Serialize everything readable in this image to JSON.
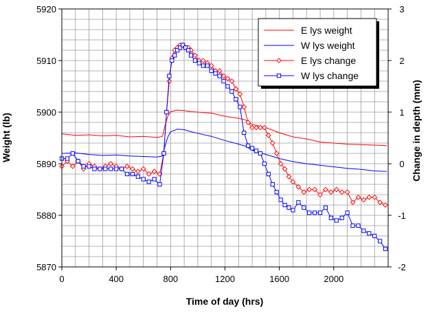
{
  "chart_data": {
    "type": "line",
    "title": "",
    "xlabel": "Time of day  (hrs)",
    "ylabel": "Weight  (lb)",
    "y2label": "Change in depth  (mm)",
    "xlim": [
      0,
      2400
    ],
    "ylim": [
      5870,
      5920
    ],
    "y2lim": [
      -2,
      3
    ],
    "x_ticks": [
      "0",
      "400",
      "800",
      "1200",
      "1600",
      "2000"
    ],
    "y_ticks": [
      "5870",
      "5880",
      "5890",
      "5900",
      "5910",
      "5920"
    ],
    "y2_ticks": [
      "-2",
      "-1",
      "0",
      "1",
      "2",
      "3"
    ],
    "grid": true,
    "legend_position": "top-right",
    "series": [
      {
        "name": "E lys weight",
        "axis": "left",
        "color": "#ff0000",
        "marker": "none",
        "x": [
          0,
          100,
          200,
          300,
          400,
          500,
          600,
          700,
          740,
          760,
          780,
          800,
          850,
          900,
          950,
          1000,
          1100,
          1200,
          1300,
          1350,
          1400,
          1500,
          1600,
          1700,
          1800,
          1900,
          2000,
          2100,
          2200,
          2300,
          2390
        ],
        "y": [
          5895.8,
          5895.5,
          5895.6,
          5895.4,
          5895.5,
          5895.2,
          5895.3,
          5895.1,
          5895.3,
          5897.5,
          5899.2,
          5900.1,
          5900.4,
          5900.3,
          5900.1,
          5900.0,
          5899.8,
          5899.2,
          5898.8,
          5898.5,
          5897.6,
          5897.0,
          5896.0,
          5895.2,
          5894.8,
          5894.2,
          5894.0,
          5893.8,
          5893.7,
          5893.6,
          5893.5
        ]
      },
      {
        "name": "W lys weight",
        "axis": "left",
        "color": "#0000ff",
        "marker": "none",
        "x": [
          0,
          100,
          200,
          300,
          400,
          500,
          600,
          700,
          740,
          760,
          780,
          800,
          850,
          900,
          950,
          1000,
          1100,
          1200,
          1300,
          1350,
          1400,
          1500,
          1600,
          1700,
          1800,
          1900,
          2000,
          2100,
          2200,
          2300,
          2390
        ],
        "y": [
          5892.0,
          5892.1,
          5891.8,
          5891.6,
          5891.7,
          5891.5,
          5891.4,
          5891.3,
          5891.5,
          5893.5,
          5895.2,
          5896.2,
          5896.7,
          5896.6,
          5896.2,
          5895.9,
          5895.3,
          5894.5,
          5893.8,
          5893.4,
          5892.6,
          5891.8,
          5891.0,
          5890.4,
          5890.0,
          5889.7,
          5889.4,
          5889.1,
          5888.9,
          5888.6,
          5888.5
        ]
      },
      {
        "name": "E lys change",
        "axis": "right",
        "color": "#ff0000",
        "marker": "diamond",
        "x": [
          0,
          40,
          80,
          120,
          160,
          200,
          240,
          280,
          320,
          360,
          400,
          440,
          480,
          520,
          560,
          600,
          640,
          680,
          720,
          750,
          770,
          790,
          810,
          830,
          850,
          870,
          890,
          910,
          930,
          950,
          980,
          1010,
          1040,
          1070,
          1100,
          1130,
          1160,
          1190,
          1220,
          1250,
          1280,
          1310,
          1340,
          1370,
          1400,
          1430,
          1460,
          1490,
          1520,
          1550,
          1580,
          1610,
          1640,
          1670,
          1700,
          1740,
          1780,
          1820,
          1860,
          1900,
          1940,
          1980,
          2020,
          2060,
          2100,
          2140,
          2180,
          2220,
          2260,
          2300,
          2340,
          2380
        ],
        "y": [
          -0.05,
          0.05,
          -0.05,
          0.05,
          -0.1,
          0.0,
          -0.05,
          -0.1,
          -0.05,
          0.0,
          -0.05,
          -0.1,
          -0.05,
          -0.1,
          -0.15,
          -0.1,
          -0.2,
          -0.15,
          -0.2,
          0.2,
          1.0,
          1.6,
          2.05,
          2.2,
          2.25,
          2.3,
          2.3,
          2.25,
          2.25,
          2.2,
          2.1,
          2.0,
          2.0,
          1.95,
          1.9,
          1.8,
          1.8,
          1.7,
          1.65,
          1.6,
          1.45,
          1.35,
          1.1,
          0.8,
          0.7,
          0.7,
          0.7,
          0.7,
          0.55,
          0.4,
          0.2,
          0.0,
          -0.1,
          -0.25,
          -0.35,
          -0.45,
          -0.55,
          -0.5,
          -0.5,
          -0.6,
          -0.5,
          -0.55,
          -0.5,
          -0.55,
          -0.55,
          -0.75,
          -0.65,
          -0.7,
          -0.65,
          -0.65,
          -0.75,
          -0.8
        ]
      },
      {
        "name": "W lys change",
        "axis": "right",
        "color": "#0000ff",
        "marker": "square",
        "x": [
          0,
          40,
          80,
          120,
          160,
          200,
          240,
          280,
          320,
          360,
          400,
          440,
          480,
          520,
          560,
          600,
          640,
          680,
          720,
          750,
          770,
          790,
          810,
          830,
          850,
          870,
          890,
          910,
          930,
          950,
          980,
          1010,
          1040,
          1070,
          1100,
          1130,
          1160,
          1190,
          1220,
          1250,
          1280,
          1310,
          1340,
          1370,
          1400,
          1430,
          1460,
          1490,
          1520,
          1550,
          1580,
          1610,
          1640,
          1670,
          1700,
          1740,
          1780,
          1820,
          1860,
          1900,
          1940,
          1980,
          2020,
          2060,
          2100,
          2140,
          2180,
          2220,
          2260,
          2300,
          2340,
          2380
        ],
        "y": [
          0.1,
          0.1,
          0.2,
          0.05,
          -0.05,
          -0.05,
          -0.1,
          -0.1,
          -0.1,
          -0.1,
          -0.1,
          -0.1,
          -0.2,
          -0.2,
          -0.25,
          -0.3,
          -0.35,
          -0.3,
          -0.4,
          0.2,
          1.0,
          1.7,
          2.0,
          2.1,
          2.2,
          2.25,
          2.3,
          2.25,
          2.2,
          2.1,
          2.0,
          1.95,
          1.9,
          1.9,
          1.8,
          1.75,
          1.7,
          1.6,
          1.5,
          1.4,
          1.25,
          1.1,
          0.6,
          0.35,
          0.3,
          0.25,
          0.2,
          0.0,
          -0.2,
          -0.4,
          -0.55,
          -0.7,
          -0.8,
          -0.85,
          -0.9,
          -0.75,
          -0.85,
          -0.95,
          -0.95,
          -0.95,
          -0.85,
          -1.05,
          -1.1,
          -1.05,
          -0.95,
          -1.2,
          -1.2,
          -1.3,
          -1.35,
          -1.4,
          -1.5,
          -1.65
        ]
      }
    ]
  }
}
